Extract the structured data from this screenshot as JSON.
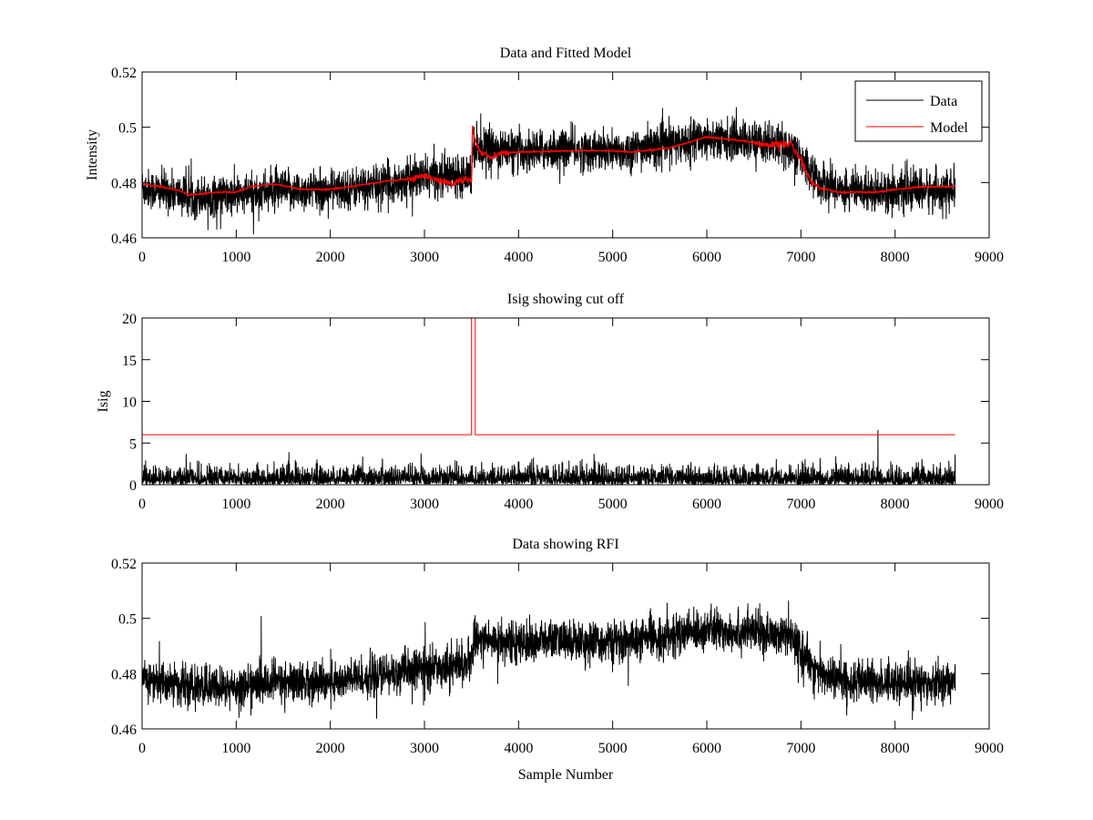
{
  "chart_data": [
    {
      "type": "line",
      "title": "Data and Fitted Model",
      "xlabel": "",
      "ylabel": "Intensity",
      "xlim": [
        0,
        9000
      ],
      "ylim": [
        0.46,
        0.52
      ],
      "xticks": [
        "0",
        "1000",
        "2000",
        "3000",
        "4000",
        "5000",
        "6000",
        "7000",
        "8000",
        "9000"
      ],
      "yticks": [
        "0.46",
        "0.48",
        "0.5",
        "0.52"
      ],
      "legend": {
        "position": "top-right",
        "entries": [
          "Data",
          "Model"
        ]
      },
      "series": [
        {
          "name": "Data",
          "color": "#000000",
          "kind": "noisy",
          "noise_amplitude": 0.0045,
          "x": [
            0,
            200,
            500,
            1000,
            1400,
            2000,
            2500,
            3000,
            3300,
            3500,
            3520,
            3550,
            4000,
            4500,
            5000,
            5500,
            6000,
            6500,
            6900,
            7000,
            7200,
            7500,
            8000,
            8640
          ],
          "y": [
            0.478,
            0.477,
            0.475,
            0.475,
            0.477,
            0.477,
            0.479,
            0.482,
            0.483,
            0.484,
            0.493,
            0.493,
            0.491,
            0.492,
            0.491,
            0.493,
            0.496,
            0.495,
            0.493,
            0.488,
            0.48,
            0.477,
            0.477,
            0.477
          ]
        },
        {
          "name": "Model",
          "color": "#ff0000",
          "kind": "smooth",
          "x": [
            0,
            200,
            400,
            500,
            800,
            1000,
            1150,
            1400,
            1700,
            2000,
            2300,
            2600,
            2900,
            3000,
            3150,
            3300,
            3450,
            3500,
            3510,
            3520,
            3540,
            3600,
            3700,
            3800,
            4000,
            4500,
            5000,
            5200,
            5600,
            6000,
            6400,
            6600,
            6800,
            6900,
            7000,
            7100,
            7200,
            7400,
            7800,
            8000,
            8300,
            8640
          ],
          "y": [
            0.4795,
            0.4785,
            0.477,
            0.4755,
            0.4765,
            0.4765,
            0.4785,
            0.4795,
            0.4775,
            0.4775,
            0.479,
            0.4805,
            0.4815,
            0.4825,
            0.481,
            0.4795,
            0.4815,
            0.48,
            0.501,
            0.498,
            0.495,
            0.491,
            0.4895,
            0.4905,
            0.491,
            0.4915,
            0.4915,
            0.491,
            0.4925,
            0.4965,
            0.495,
            0.4935,
            0.494,
            0.494,
            0.488,
            0.481,
            0.478,
            0.4765,
            0.4765,
            0.4775,
            0.4785,
            0.4785
          ]
        }
      ]
    },
    {
      "type": "line",
      "title": "Isig showing cut off",
      "xlabel": "",
      "ylabel": "Isig",
      "xlim": [
        0,
        9000
      ],
      "ylim": [
        0,
        20
      ],
      "xticks": [
        "0",
        "1000",
        "2000",
        "3000",
        "4000",
        "5000",
        "6000",
        "7000",
        "8000",
        "9000"
      ],
      "yticks": [
        "0",
        "5",
        "10",
        "15",
        "20"
      ],
      "series": [
        {
          "name": "Isig",
          "color": "#000000",
          "kind": "abs-noise",
          "noise_amplitude": 1.2,
          "x": [
            0,
            8640
          ],
          "y": [
            0,
            0
          ]
        },
        {
          "name": "Cut off",
          "color": "#ff0000",
          "kind": "step",
          "x": [
            0,
            3500,
            3500,
            3540,
            3540,
            8640
          ],
          "y": [
            6,
            6,
            20,
            20,
            6,
            6
          ]
        }
      ]
    },
    {
      "type": "line",
      "title": "Data showing RFI",
      "xlabel": "Sample Number",
      "ylabel": "",
      "xlim": [
        0,
        9000
      ],
      "ylim": [
        0.46,
        0.52
      ],
      "xticks": [
        "0",
        "1000",
        "2000",
        "3000",
        "4000",
        "5000",
        "6000",
        "7000",
        "8000",
        "9000"
      ],
      "yticks": [
        "0.46",
        "0.48",
        "0.5",
        "0.52"
      ],
      "series": [
        {
          "name": "Data",
          "color": "#000000",
          "kind": "noisy",
          "noise_amplitude": 0.0045,
          "x": [
            0,
            200,
            500,
            1000,
            1400,
            2000,
            2500,
            3000,
            3300,
            3500,
            3520,
            3550,
            4000,
            4500,
            5000,
            5500,
            6000,
            6500,
            6900,
            7000,
            7200,
            7500,
            8000,
            8640
          ],
          "y": [
            0.478,
            0.477,
            0.475,
            0.475,
            0.477,
            0.477,
            0.479,
            0.482,
            0.483,
            0.484,
            0.493,
            0.493,
            0.491,
            0.492,
            0.491,
            0.493,
            0.496,
            0.495,
            0.493,
            0.488,
            0.48,
            0.477,
            0.477,
            0.477
          ]
        }
      ]
    }
  ]
}
